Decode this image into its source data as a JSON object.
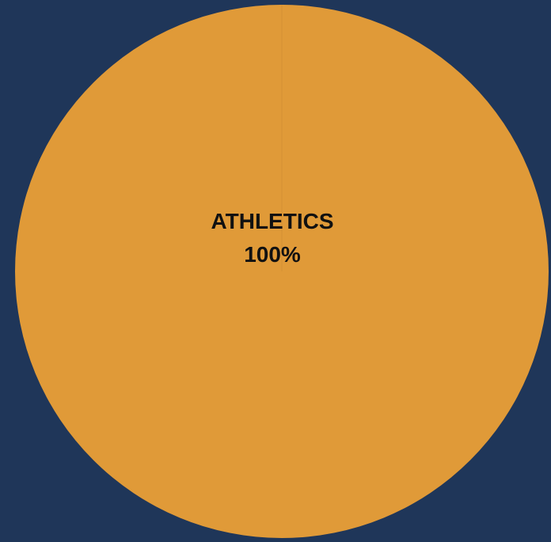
{
  "chart_data": {
    "type": "pie",
    "slices": [
      {
        "label": "ATHLETICS",
        "value": 100,
        "percent_label": "100%",
        "color": "#e09a38"
      }
    ],
    "title": "",
    "legend": "none"
  },
  "colors": {
    "background": "#1f3659",
    "label_text": "#111111"
  }
}
